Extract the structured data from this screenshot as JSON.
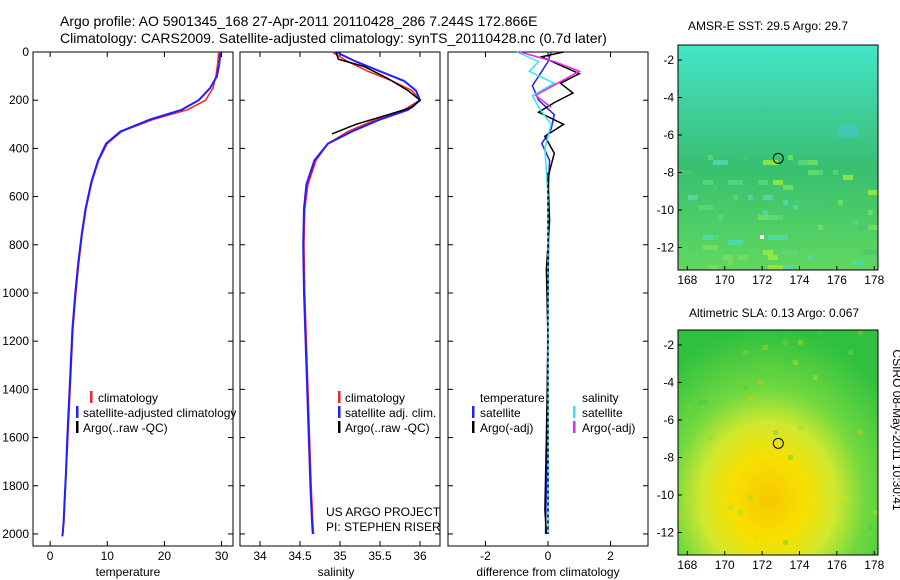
{
  "header": {
    "line1": "Argo profile: AO 5901345_168 27-Apr-2011 20110428_286 7.244S 172.866E",
    "line2": "Climatology: CARS2009. Satellite-adjusted climatology: synTS_20110428.nc (0.7d later)"
  },
  "credit": {
    "project": "US ARGO PROJECT",
    "pi": "PI: STEPHEN RISER",
    "stamp": "CSIRO 08-May-2011 10:30:41"
  },
  "colors": {
    "climatology": "#ff2020",
    "satellite": "#2020ff",
    "argo": "#000000",
    "salinity_satellite": "#30e8ee",
    "salinity_argo": "#ee22ee"
  },
  "chart_data": [
    {
      "type": "line",
      "xlabel": "temperature",
      "xlim": [
        -3,
        32
      ],
      "ylim": [
        2050,
        0
      ],
      "xticks": [
        "0",
        "10",
        "20",
        "30"
      ],
      "xtick_values": [
        0,
        10,
        20,
        30
      ],
      "yticks": [
        "0",
        "200",
        "400",
        "600",
        "800",
        "1000",
        "1200",
        "1400",
        "1600",
        "1800",
        "2000"
      ],
      "ytick_values": [
        0,
        200,
        400,
        600,
        800,
        1000,
        1200,
        1400,
        1600,
        1800,
        2000
      ],
      "legend": [
        "climatology",
        "satellite-adjusted climatology",
        "Argo(..raw -QC)"
      ],
      "series": [
        {
          "name": "climatology",
          "color": "#ff2020",
          "width": 1.5,
          "x": [
            29.5,
            29.3,
            29.0,
            28.5,
            27.2,
            24.0,
            18.0,
            12.5,
            10.0,
            8.5,
            7.3,
            6.3,
            5.6,
            5.0,
            4.5,
            4.0,
            3.7,
            3.4,
            3.1,
            2.8,
            2.6,
            2.4,
            2.2,
            2.15
          ],
          "y": [
            0,
            50,
            100,
            150,
            200,
            240,
            280,
            330,
            380,
            450,
            540,
            650,
            760,
            880,
            1000,
            1150,
            1300,
            1450,
            1600,
            1750,
            1850,
            1950,
            2000,
            2010
          ]
        },
        {
          "name": "satellite-adjusted climatology",
          "color": "#2020ff",
          "width": 2,
          "x": [
            29.8,
            29.6,
            29.2,
            28.0,
            26.0,
            23.0,
            17.5,
            12.3,
            9.8,
            8.4,
            7.2,
            6.2,
            5.5,
            4.9,
            4.4,
            3.9,
            3.6,
            3.3,
            3.0,
            2.75,
            2.55,
            2.35,
            2.2,
            2.1
          ],
          "y": [
            0,
            50,
            100,
            150,
            200,
            240,
            280,
            330,
            380,
            450,
            540,
            650,
            760,
            880,
            1000,
            1150,
            1300,
            1450,
            1600,
            1750,
            1850,
            1950,
            2000,
            2010
          ]
        }
      ]
    },
    {
      "type": "line",
      "xlabel": "salinity",
      "xlim": [
        33.75,
        36.25
      ],
      "ylim": [
        2050,
        0
      ],
      "xticks": [
        "34",
        "34.5",
        "35",
        "35.5",
        "36"
      ],
      "xtick_values": [
        34,
        34.5,
        35,
        35.5,
        36
      ],
      "legend": [
        "climatology",
        "satellite adj. clim.",
        "Argo(..raw -QC)"
      ],
      "series": [
        {
          "name": "climatology",
          "color": "#ff2020",
          "width": 1.5,
          "x": [
            34.9,
            35.1,
            35.35,
            35.65,
            35.9,
            36.0,
            35.8,
            35.45,
            35.1,
            34.85,
            34.7,
            34.6,
            34.56,
            34.55,
            34.56,
            34.58,
            34.6,
            34.62,
            34.64,
            34.66,
            34.67
          ],
          "y": [
            0,
            40,
            80,
            120,
            160,
            200,
            240,
            280,
            330,
            380,
            450,
            550,
            650,
            800,
            1000,
            1200,
            1400,
            1600,
            1800,
            1950,
            2000
          ]
        },
        {
          "name": "satellite adj. clim.",
          "color": "#2020ff",
          "width": 2,
          "x": [
            34.95,
            35.2,
            35.5,
            35.8,
            35.95,
            36.0,
            35.85,
            35.5,
            35.15,
            34.85,
            34.68,
            34.58,
            34.55,
            34.54,
            34.55,
            34.57,
            34.59,
            34.61,
            34.63,
            34.65,
            34.66
          ],
          "y": [
            0,
            40,
            80,
            120,
            160,
            200,
            240,
            280,
            330,
            380,
            450,
            550,
            650,
            800,
            1000,
            1200,
            1400,
            1600,
            1800,
            1950,
            2000
          ]
        },
        {
          "name": "Argo(..raw -QC)",
          "color": "#000000",
          "width": 1.5,
          "x": [
            34.95,
            34.98,
            35.3,
            35.6,
            35.85,
            36.0,
            35.9,
            35.6,
            35.2,
            34.9
          ],
          "y": [
            0,
            30,
            60,
            110,
            160,
            200,
            230,
            260,
            300,
            340
          ]
        }
      ]
    },
    {
      "type": "line",
      "xlabel": "difference from climatology",
      "xlim": [
        -3.2,
        3.2
      ],
      "ylim": [
        2050,
        0
      ],
      "xticks": [
        "-2",
        "0",
        "2"
      ],
      "xtick_values": [
        -2,
        0,
        2
      ],
      "legend_temperature_header": "temperature",
      "legend_salinity_header": "salinity",
      "legend_temperature": [
        "satellite",
        "Argo(-adj)"
      ],
      "legend_salinity": [
        "satellite",
        "Argo(-adj)"
      ],
      "series": [
        {
          "name": "temperature satellite",
          "color": "#2020ff",
          "width": 1.5,
          "x": [
            0.1,
            0.0,
            -0.2,
            -0.5,
            -0.3,
            0.2,
            0.1,
            -0.2,
            0.05,
            0.0,
            0.02,
            0.0,
            -0.02,
            -0.05,
            -0.08
          ],
          "y": [
            0,
            40,
            80,
            140,
            200,
            260,
            320,
            380,
            450,
            600,
            800,
            1000,
            1400,
            1800,
            2000
          ]
        },
        {
          "name": "temperature Argo(-adj)",
          "color": "#000000",
          "width": 1.5,
          "x": [
            0.5,
            -0.2,
            0.3,
            1.0,
            0.4,
            0.8,
            0.2,
            -0.3,
            0.5,
            -0.1,
            0.2,
            0.0,
            0.05,
            -0.05,
            0.0,
            -0.05,
            -0.1,
            -0.05
          ],
          "y": [
            0,
            20,
            50,
            90,
            130,
            170,
            210,
            250,
            300,
            350,
            420,
            520,
            700,
            900,
            1200,
            1600,
            1900,
            2000
          ]
        },
        {
          "name": "salinity satellite",
          "color": "#30e8ee",
          "width": 1.5,
          "x": [
            -1.0,
            -0.3,
            -0.6,
            0.2,
            -0.5,
            -0.3,
            0.1,
            -0.1,
            0.0,
            0.0,
            0.0,
            0.0
          ],
          "y": [
            0,
            40,
            80,
            130,
            180,
            230,
            300,
            400,
            600,
            1000,
            1500,
            2000
          ]
        },
        {
          "name": "salinity Argo(-adj)",
          "color": "#ee22ee",
          "width": 1.5,
          "x": [
            -0.9,
            0.2,
            1.0,
            0.3,
            -0.4,
            0.1
          ],
          "y": [
            0,
            40,
            80,
            130,
            180,
            230
          ]
        }
      ]
    },
    {
      "type": "heatmap",
      "title": "AMSR-E SST: 29.5 Argo: 29.7",
      "xlim": [
        167.5,
        178.2
      ],
      "ylim": [
        -13.2,
        -1.2
      ],
      "xticks": [
        "168",
        "170",
        "172",
        "174",
        "176",
        "178"
      ],
      "xtick_values": [
        168,
        170,
        172,
        174,
        176,
        178
      ],
      "yticks": [
        "-2",
        "-4",
        "-6",
        "-8",
        "-10",
        "-12"
      ],
      "ytick_values": [
        -2,
        -4,
        -6,
        -8,
        -10,
        -12
      ],
      "marker": {
        "lon": 172.866,
        "lat": -7.244
      }
    },
    {
      "type": "heatmap",
      "title": "Altimetric SLA: 0.13 Argo: 0.067",
      "xlim": [
        167.5,
        178.2
      ],
      "ylim": [
        -13.2,
        -1.2
      ],
      "xticks": [
        "168",
        "170",
        "172",
        "174",
        "176",
        "178"
      ],
      "xtick_values": [
        168,
        170,
        172,
        174,
        176,
        178
      ],
      "yticks": [
        "-2",
        "-4",
        "-6",
        "-8",
        "-10",
        "-12"
      ],
      "ytick_values": [
        -2,
        -4,
        -6,
        -8,
        -10,
        -12
      ],
      "marker": {
        "lon": 172.866,
        "lat": -7.244
      }
    }
  ]
}
